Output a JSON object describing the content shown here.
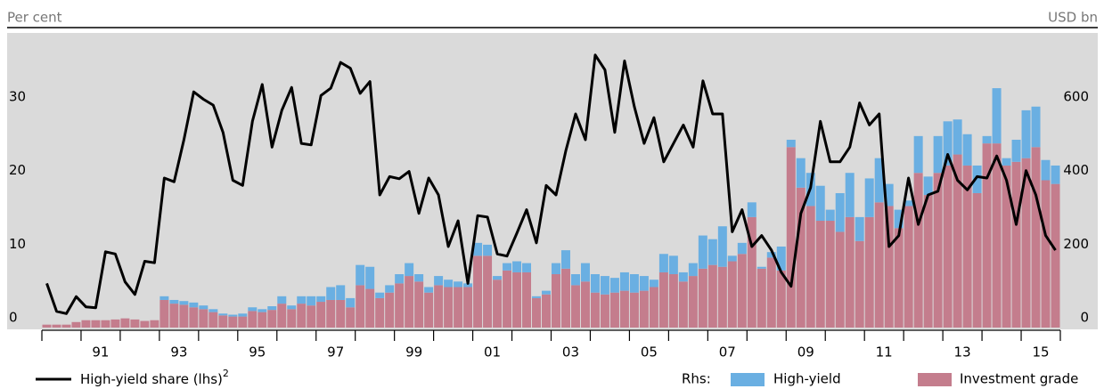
{
  "chart_data": {
    "type": "bar_line",
    "y_label": "Per cent",
    "y2_label": "USD bn",
    "legend_prefix": "Rhs:",
    "categories": [
      null,
      null,
      null,
      null,
      null,
      null,
      "91",
      null,
      null,
      null,
      null,
      null,
      null,
      null,
      "93",
      null,
      null,
      null,
      null,
      null,
      null,
      null,
      "95",
      null,
      null,
      null,
      null,
      null,
      null,
      null,
      "97",
      null,
      null,
      null,
      null,
      null,
      null,
      null,
      "99",
      null,
      null,
      null,
      null,
      null,
      null,
      null,
      "01",
      null,
      null,
      null,
      null,
      null,
      null,
      null,
      "03",
      null,
      null,
      null,
      null,
      null,
      null,
      null,
      "05",
      null,
      null,
      null,
      null,
      null,
      null,
      null,
      "07",
      null,
      null,
      null,
      null,
      null,
      null,
      null,
      "09",
      null,
      null,
      null,
      null,
      null,
      null,
      null,
      "11",
      null,
      null,
      null,
      null,
      null,
      null,
      null,
      "13",
      null,
      null,
      null,
      null,
      null,
      null,
      null,
      "15",
      null
    ],
    "ylim": [
      0,
      40
    ],
    "yticks": [
      0,
      10,
      20,
      30
    ],
    "y2lim": [
      0,
      800
    ],
    "y2ticks": [
      0,
      200,
      400,
      600
    ],
    "series": [
      {
        "name": "High-yield share (lhs)",
        "footnote": "2",
        "type": "line",
        "color": "#000000",
        "values": [
          6.0,
          2.2,
          1.9,
          4.2,
          2.8,
          2.7,
          10.3,
          10.0,
          6.2,
          4.5,
          9.0,
          8.8,
          20.3,
          19.8,
          25.5,
          32.0,
          31.0,
          30.2,
          26.5,
          20.0,
          19.3,
          28.0,
          33.0,
          24.5,
          29.5,
          32.6,
          25.0,
          24.8,
          31.5,
          32.5,
          36.0,
          35.2,
          31.8,
          33.4,
          18.0,
          20.5,
          20.2,
          21.2,
          15.5,
          20.3,
          18.0,
          11.0,
          14.5,
          6.0,
          15.2,
          15.0,
          10.0,
          9.7,
          12.8,
          16.0,
          11.5,
          19.3,
          18.0,
          24.0,
          29.0,
          25.5,
          37.0,
          35.0,
          26.5,
          36.2,
          30.0,
          25.0,
          28.5,
          22.5,
          25.0,
          27.5,
          24.5,
          33.5,
          29.0,
          29.0,
          13.0,
          16.0,
          11.0,
          12.5,
          10.5,
          7.5,
          5.6,
          15.5,
          19.0,
          28.0,
          22.5,
          22.5,
          24.5,
          30.5,
          27.5,
          29.0,
          11.0,
          12.5,
          20.3,
          14.0,
          18.0,
          18.5,
          23.5,
          20.0,
          18.7,
          20.5,
          20.3,
          23.3,
          20.0,
          14.0,
          21.3,
          18.0,
          12.5,
          10.5
        ]
      },
      {
        "name": "Investment grade",
        "type": "bar",
        "axis": "y2",
        "color": "#c47d8d",
        "values": [
          8,
          8,
          8,
          15,
          20,
          20,
          20,
          22,
          25,
          22,
          18,
          20,
          75,
          65,
          62,
          55,
          50,
          42,
          33,
          30,
          30,
          45,
          42,
          48,
          65,
          50,
          65,
          60,
          70,
          75,
          75,
          55,
          115,
          105,
          80,
          95,
          120,
          140,
          125,
          95,
          115,
          110,
          110,
          110,
          195,
          195,
          130,
          155,
          150,
          150,
          80,
          90,
          145,
          160,
          115,
          125,
          95,
          90,
          95,
          100,
          95,
          100,
          110,
          150,
          145,
          125,
          140,
          160,
          170,
          165,
          180,
          200,
          300,
          160,
          190,
          155,
          490,
          380,
          330,
          290,
          290,
          260,
          300,
          235,
          300,
          340,
          330,
          270,
          330,
          420,
          360,
          420,
          440,
          470,
          440,
          365,
          500,
          500,
          440,
          450,
          460,
          490,
          400,
          390
        ]
      },
      {
        "name": "High-yield",
        "type": "bar",
        "axis": "y2",
        "color": "#6aafe2",
        "values": [
          0,
          0,
          0,
          0,
          0,
          0,
          0,
          0,
          0,
          0,
          0,
          0,
          10,
          10,
          10,
          13,
          10,
          8,
          5,
          5,
          8,
          10,
          8,
          10,
          20,
          10,
          20,
          25,
          15,
          35,
          40,
          25,
          55,
          60,
          15,
          20,
          25,
          35,
          20,
          15,
          25,
          20,
          15,
          10,
          35,
          30,
          10,
          20,
          30,
          25,
          5,
          10,
          30,
          50,
          30,
          50,
          50,
          50,
          40,
          50,
          50,
          40,
          20,
          50,
          50,
          25,
          35,
          90,
          70,
          110,
          15,
          30,
          40,
          5,
          15,
          65,
          20,
          80,
          90,
          95,
          30,
          105,
          120,
          65,
          105,
          120,
          60,
          50,
          15,
          100,
          50,
          100,
          120,
          95,
          85,
          75,
          20,
          150,
          20,
          60,
          130,
          110,
          55,
          50
        ]
      }
    ]
  }
}
